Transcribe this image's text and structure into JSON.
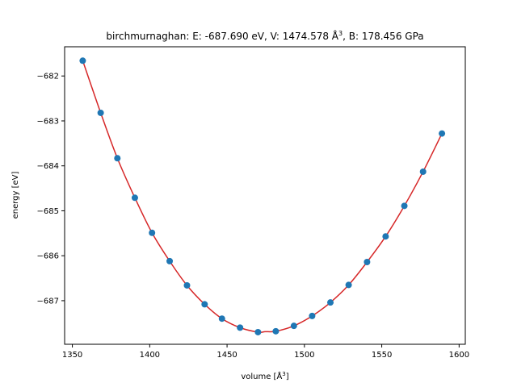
{
  "chart_data": {
    "type": "scatter",
    "title_prefix": "birchmurnaghan: E: -687.690 eV, V: 1474.578 Å",
    "title_sup": "3",
    "title_suffix": ", B: 178.456 GPa",
    "xlabel_prefix": "volume [Å",
    "xlabel_sup": "3",
    "xlabel_suffix": "]",
    "ylabel": "energy [eV]",
    "xlim": [
      1345,
      1604
    ],
    "ylim": [
      -687.97,
      -681.35
    ],
    "xticks": [
      1350,
      1400,
      1450,
      1500,
      1550,
      1600
    ],
    "yticks": [
      -687,
      -686,
      -685,
      -684,
      -683,
      -682
    ],
    "grid": false,
    "series": [
      {
        "kind": "points",
        "color": "#1f77b4",
        "x": [
          1356.7,
          1368.3,
          1379.1,
          1390.4,
          1401.5,
          1412.9,
          1424.1,
          1435.5,
          1446.7,
          1458.4,
          1470.0,
          1481.5,
          1493.2,
          1505.0,
          1516.8,
          1528.6,
          1540.5,
          1552.5,
          1564.6,
          1576.7,
          1588.9
        ],
        "y": [
          -681.66,
          -682.82,
          -683.83,
          -684.71,
          -685.49,
          -686.12,
          -686.66,
          -687.08,
          -687.4,
          -687.6,
          -687.7,
          -687.68,
          -687.56,
          -687.34,
          -687.04,
          -686.65,
          -686.14,
          -685.57,
          -684.89,
          -684.13,
          -683.28
        ]
      },
      {
        "kind": "fit-line",
        "color": "#d62728",
        "x": [
          1356.7,
          1368.3,
          1379.1,
          1390.4,
          1401.5,
          1412.9,
          1424.1,
          1435.5,
          1446.7,
          1458.4,
          1470.0,
          1474.6,
          1481.5,
          1493.2,
          1505.0,
          1516.8,
          1528.6,
          1540.5,
          1552.5,
          1564.6,
          1576.7,
          1588.9
        ],
        "y": [
          -681.66,
          -682.82,
          -683.83,
          -684.71,
          -685.49,
          -686.12,
          -686.66,
          -687.08,
          -687.4,
          -687.6,
          -687.7,
          -687.69,
          -687.68,
          -687.56,
          -687.34,
          -687.04,
          -686.65,
          -686.14,
          -685.57,
          -684.89,
          -684.13,
          -683.28
        ]
      }
    ]
  }
}
